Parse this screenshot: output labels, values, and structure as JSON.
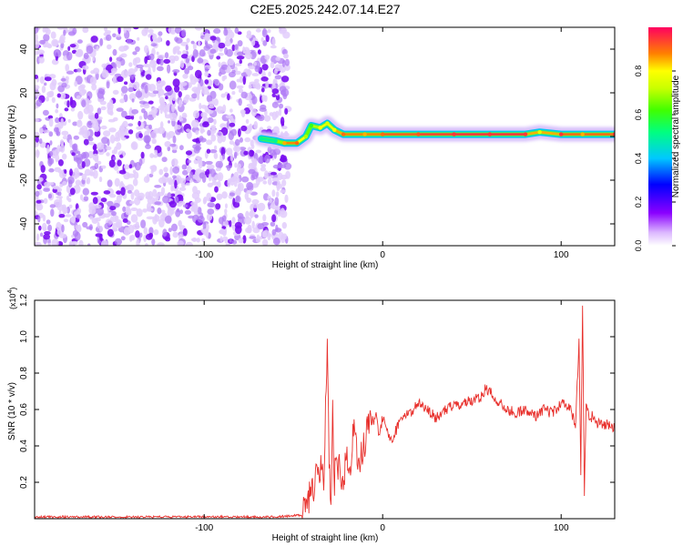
{
  "title": "C2E5.2025.242.07.14.E27",
  "chart_data": [
    {
      "type": "heatmap",
      "xlabel": "Height of straight line (km)",
      "ylabel": "Frequency (Hz)",
      "xlim": [
        -195,
        130
      ],
      "ylim": [
        -50,
        50
      ],
      "x_ticks": [
        -100,
        0,
        100
      ],
      "y_ticks": [
        -40,
        -20,
        0,
        20,
        40
      ],
      "colorbar": {
        "label": "Normalized spectral amplitude",
        "range": [
          0,
          1
        ],
        "ticks": [
          0.0,
          0.2,
          0.4,
          0.6,
          0.8
        ]
      },
      "noise_region": {
        "x_start": -195,
        "x_end": -55
      },
      "ridge_track": [
        {
          "x": -68,
          "y": -1,
          "amp": 0.5
        },
        {
          "x": -60,
          "y": -2,
          "amp": 0.5
        },
        {
          "x": -55,
          "y": -3,
          "amp": 0.85
        },
        {
          "x": -48,
          "y": -3,
          "amp": 0.9
        },
        {
          "x": -43,
          "y": 0,
          "amp": 0.7
        },
        {
          "x": -40,
          "y": 5,
          "amp": 0.6
        },
        {
          "x": -35,
          "y": 4,
          "amp": 0.8
        },
        {
          "x": -31,
          "y": 6,
          "amp": 0.75
        },
        {
          "x": -27,
          "y": 3,
          "amp": 0.8
        },
        {
          "x": -22,
          "y": 1,
          "amp": 0.9
        },
        {
          "x": -10,
          "y": 1,
          "amp": 0.85
        },
        {
          "x": 0,
          "y": 1,
          "amp": 0.9
        },
        {
          "x": 20,
          "y": 1,
          "amp": 0.92
        },
        {
          "x": 40,
          "y": 1,
          "amp": 0.95
        },
        {
          "x": 60,
          "y": 1,
          "amp": 0.95
        },
        {
          "x": 80,
          "y": 1,
          "amp": 0.95
        },
        {
          "x": 88,
          "y": 2,
          "amp": 0.75
        },
        {
          "x": 100,
          "y": 1,
          "amp": 0.95
        },
        {
          "x": 112,
          "y": 1,
          "amp": 0.85
        },
        {
          "x": 130,
          "y": 1,
          "amp": 0.95
        }
      ]
    },
    {
      "type": "line",
      "xlabel": "Height of straight line (km)",
      "ylabel": "SNR (10 * v/v)",
      "y_multiplier_label": "(x10",
      "y_multiplier_exp": "4",
      "xlim": [
        -195,
        130
      ],
      "ylim": [
        0,
        1.2
      ],
      "x_ticks": [
        -100,
        0,
        100
      ],
      "y_ticks": [
        0.2,
        0.4,
        0.6,
        0.8,
        1.0,
        1.2
      ],
      "color": "#e8302c",
      "series": [
        {
          "x": [
            -195,
            -150,
            -100,
            -60,
            -45,
            -42,
            -40,
            -38,
            -36,
            -34,
            -33,
            -32,
            -31,
            -30,
            -29,
            -28,
            -27,
            -26,
            -25,
            -24,
            -22,
            -20,
            -18,
            -16,
            -14,
            -12,
            -10,
            -8,
            -6,
            -4,
            -2,
            0,
            5,
            10,
            15,
            20,
            25,
            30,
            35,
            40,
            45,
            50,
            55,
            58,
            60,
            65,
            70,
            75,
            80,
            85,
            90,
            95,
            100,
            105,
            108,
            110,
            111,
            112,
            113,
            114,
            115,
            116,
            118,
            120,
            125,
            130
          ],
          "y": [
            0.01,
            0.01,
            0.01,
            0.01,
            0.02,
            0.08,
            0.15,
            0.2,
            0.25,
            0.32,
            0.15,
            0.6,
            0.9,
            0.35,
            0.1,
            0.58,
            0.2,
            0.38,
            0.3,
            0.25,
            0.2,
            0.35,
            0.3,
            0.5,
            0.3,
            0.35,
            0.4,
            0.55,
            0.48,
            0.58,
            0.45,
            0.55,
            0.42,
            0.55,
            0.58,
            0.63,
            0.6,
            0.55,
            0.6,
            0.62,
            0.63,
            0.65,
            0.67,
            0.72,
            0.7,
            0.64,
            0.6,
            0.58,
            0.6,
            0.56,
            0.6,
            0.58,
            0.63,
            0.62,
            0.5,
            0.97,
            0.25,
            1.2,
            0.15,
            0.65,
            0.6,
            0.55,
            0.57,
            0.52,
            0.52,
            0.5
          ]
        }
      ]
    }
  ]
}
